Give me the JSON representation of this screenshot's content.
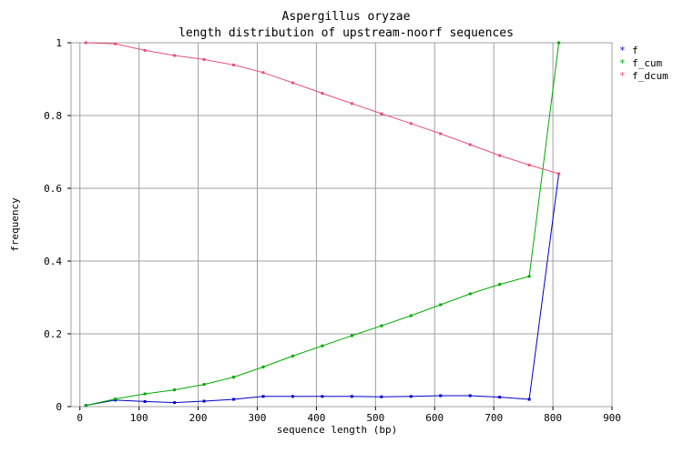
{
  "chart_data": {
    "type": "line",
    "title": "Aspergillus oryzae",
    "subtitle": "length distribution of upstream-noorf sequences",
    "xlabel": "sequence length (bp)",
    "ylabel": "frequency",
    "xlim": [
      -15,
      900
    ],
    "ylim": [
      0,
      1
    ],
    "xticks": [
      0,
      100,
      200,
      300,
      400,
      500,
      600,
      700,
      800,
      900
    ],
    "yticks": [
      0,
      0.2,
      0.4,
      0.6,
      0.8,
      1
    ],
    "grid": true,
    "legend_position": "top-right",
    "x": [
      10,
      60,
      110,
      160,
      210,
      260,
      310,
      360,
      410,
      460,
      510,
      560,
      610,
      660,
      710,
      760,
      810
    ],
    "series": [
      {
        "name": "f",
        "color": "#0000cc",
        "values": [
          0.003,
          0.018,
          0.014,
          0.011,
          0.015,
          0.02,
          0.028,
          0.028,
          0.028,
          0.028,
          0.027,
          0.028,
          0.03,
          0.03,
          0.026,
          0.02,
          0.64
        ]
      },
      {
        "name": "f_cum",
        "color": "#00aa00",
        "values": [
          0.003,
          0.021,
          0.035,
          0.046,
          0.061,
          0.081,
          0.109,
          0.139,
          0.167,
          0.195,
          0.222,
          0.25,
          0.28,
          0.31,
          0.336,
          0.358,
          1.0
        ]
      },
      {
        "name": "f_dcum",
        "color": "#e8507a",
        "values": [
          1.0,
          0.997,
          0.979,
          0.965,
          0.954,
          0.939,
          0.918,
          0.89,
          0.861,
          0.833,
          0.805,
          0.778,
          0.75,
          0.72,
          0.69,
          0.664,
          0.64
        ]
      }
    ]
  }
}
